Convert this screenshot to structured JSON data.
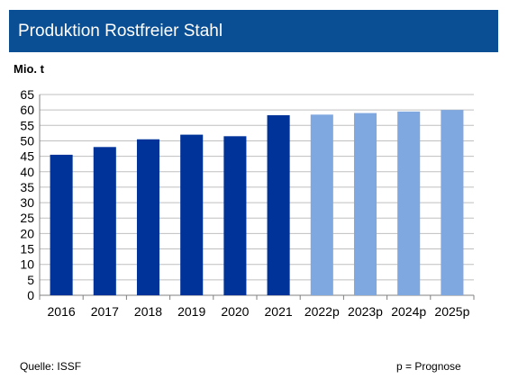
{
  "header": {
    "title": "Produktion Rostfreier Stahl"
  },
  "unit_label": "Mio. t",
  "footer": {
    "source": "Quelle: ISSF",
    "note": "p = Prognose"
  },
  "colors": {
    "title_bar": "#0a4f94",
    "actual": "#003399",
    "forecast": "#7fa7e0",
    "grid": "#bfbfbf"
  },
  "chart_data": {
    "type": "bar",
    "title": "Produktion Rostfreier Stahl",
    "ylabel": "Mio. t",
    "xlabel": "",
    "categories": [
      "2016",
      "2017",
      "2018",
      "2019",
      "2020",
      "2021",
      "2022p",
      "2023p",
      "2024p",
      "2025p"
    ],
    "values": [
      45.5,
      48,
      50.5,
      52,
      51.5,
      58.3,
      58.5,
      59,
      59.5,
      60
    ],
    "forecast": [
      false,
      false,
      false,
      false,
      false,
      false,
      true,
      true,
      true,
      true
    ],
    "ylim": [
      0,
      65
    ],
    "yticks": [
      0,
      5,
      10,
      15,
      20,
      25,
      30,
      35,
      40,
      45,
      50,
      55,
      60,
      65
    ],
    "grid": true,
    "legend": "none"
  }
}
